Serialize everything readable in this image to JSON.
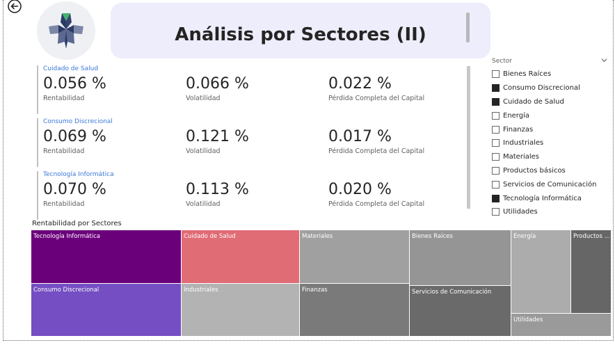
{
  "header": {
    "title": "Análisis por Sectores (II)"
  },
  "icons": {
    "back": "arrow-left-circle-icon",
    "logo": "star-logo-icon",
    "chevron": "chevron-down-icon"
  },
  "cards": [
    {
      "sector": "Cuidado de Salud",
      "rentabilidad": "0.056 %",
      "rentabilidad_label": "Rentabilidad",
      "volatilidad": "0.066 %",
      "volatilidad_label": "Volatilidad",
      "perdida": "0.022 %",
      "perdida_label": "Pérdida Completa del Capital"
    },
    {
      "sector": "Consumo Discrecional",
      "rentabilidad": "0.069 %",
      "rentabilidad_label": "Rentabilidad",
      "volatilidad": "0.121 %",
      "volatilidad_label": "Volatilidad",
      "perdida": "0.017 %",
      "perdida_label": "Pérdida Completa del Capital"
    },
    {
      "sector": "Tecnología Informática",
      "rentabilidad": "0.070 %",
      "rentabilidad_label": "Rentabilidad",
      "volatilidad": "0.113 %",
      "volatilidad_label": "Volatilidad",
      "perdida": "0.020 %",
      "perdida_label": "Pérdida Completa del Capital"
    }
  ],
  "slicer": {
    "title": "Sector",
    "items": [
      {
        "label": "Bienes Raíces",
        "checked": false
      },
      {
        "label": "Consumo Discrecional",
        "checked": true
      },
      {
        "label": "Cuidado de Salud",
        "checked": true
      },
      {
        "label": "Energía",
        "checked": false
      },
      {
        "label": "Finanzas",
        "checked": false
      },
      {
        "label": "Industriales",
        "checked": false
      },
      {
        "label": "Materiales",
        "checked": false
      },
      {
        "label": "Productos básicos",
        "checked": false
      },
      {
        "label": "Servicios de Comunicación",
        "checked": false
      },
      {
        "label": "Tecnología Informática",
        "checked": true
      },
      {
        "label": "Utilidades",
        "checked": false
      }
    ]
  },
  "treemap": {
    "title": "Rentabilidad por Sectores",
    "tiles": [
      {
        "label": "Tecnología Informática",
        "color": "#6b007b"
      },
      {
        "label": "Consumo Discrecional",
        "color": "#744ec2"
      },
      {
        "label": "Cuidado de Salud",
        "color": "#e06c75"
      },
      {
        "label": "Industriales",
        "color": "#b3b3b3"
      },
      {
        "label": "Materiales",
        "color": "#a0a0a0"
      },
      {
        "label": "Finanzas",
        "color": "#7a7a7a"
      },
      {
        "label": "Bienes Raíces",
        "color": "#959595"
      },
      {
        "label": "Servicios de Comunicación",
        "color": "#6a6a6a"
      },
      {
        "label": "Energía",
        "color": "#acacac"
      },
      {
        "label": "Productos ...",
        "color": "#666666"
      },
      {
        "label": "Utilidades",
        "color": "#9a9a9a"
      }
    ]
  }
}
